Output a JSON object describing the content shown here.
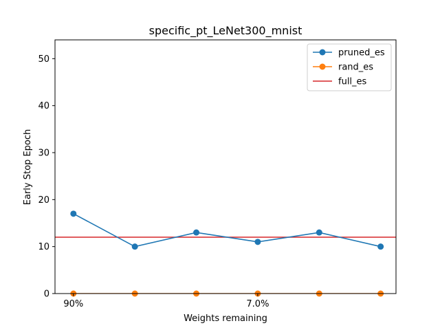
{
  "chart_data": {
    "type": "line",
    "title": "specific_pt_LeNet300_mnist",
    "xlabel": "Weights remaining",
    "ylabel": "Early Stop Epoch",
    "x": [
      0,
      1,
      2,
      3,
      4,
      5
    ],
    "xlim": [
      -0.3,
      5.25
    ],
    "ylim": [
      0,
      54
    ],
    "xticks": [
      {
        "x": 0,
        "label": "90%"
      },
      {
        "x": 3,
        "label": "7.0%"
      }
    ],
    "yticks": [
      0,
      10,
      20,
      30,
      40,
      50
    ],
    "grid": false,
    "legend_position": "top-right",
    "series": [
      {
        "name": "pruned_es",
        "type": "line-marker",
        "color": "#1f77b4",
        "values": [
          17,
          10,
          13,
          11,
          13,
          10
        ]
      },
      {
        "name": "rand_es",
        "type": "line-marker",
        "color": "#ff7f0e",
        "values": [
          0,
          0,
          0,
          0,
          0,
          0
        ]
      },
      {
        "name": "full_es",
        "type": "hline",
        "color": "#d62728",
        "y": 12
      }
    ]
  }
}
